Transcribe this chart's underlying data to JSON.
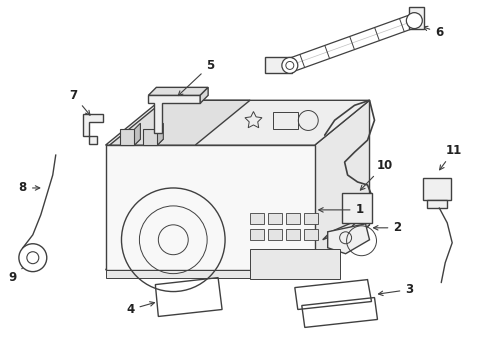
{
  "bg_color": "#ffffff",
  "line_color": "#404040",
  "line_width": 1.0,
  "label_color": "#222222",
  "label_fontsize": 8.5
}
